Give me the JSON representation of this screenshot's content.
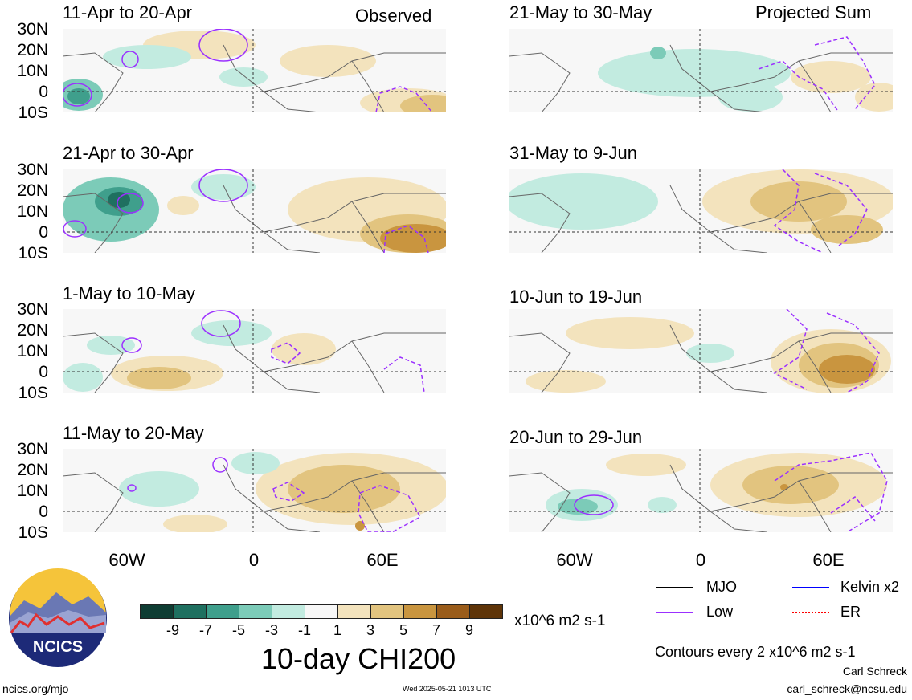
{
  "header": {
    "observed_label": "Observed",
    "projected_label": "Projected Sum"
  },
  "panels": {
    "left": [
      {
        "title": "11-Apr to 20-Apr"
      },
      {
        "title": "21-Apr to 30-Apr"
      },
      {
        "title": "1-May to 10-May"
      },
      {
        "title": "11-May to 20-May"
      }
    ],
    "right": [
      {
        "title": "21-May to 30-May"
      },
      {
        "title": "31-May to 9-Jun"
      },
      {
        "title": "10-Jun to 19-Jun"
      },
      {
        "title": "20-Jun to 29-Jun"
      }
    ]
  },
  "axes": {
    "lat_labels": [
      "30N",
      "20N",
      "10N",
      "0",
      "10S"
    ],
    "lon_labels": [
      "60W",
      "0",
      "60E"
    ]
  },
  "colorbar": {
    "ticks": [
      "-9",
      "-7",
      "-5",
      "-3",
      "-1",
      "1",
      "3",
      "5",
      "7",
      "9"
    ],
    "colors": [
      "#0f3d33",
      "#1f7060",
      "#3f9f8c",
      "#7ccbb8",
      "#c2ebe0",
      "#f7f7f7",
      "#f3e3bd",
      "#e2c47f",
      "#c9953f",
      "#9a5c1a",
      "#5e3408"
    ],
    "units": "x10^6 m2 s-1",
    "title": "10-day CHI200"
  },
  "legend": {
    "items": [
      {
        "label": "MJO",
        "color": "#000000",
        "style": "solid"
      },
      {
        "label": "Kelvin x2",
        "color": "#0000ff",
        "style": "solid"
      },
      {
        "label": "Low",
        "color": "#9b30ff",
        "style": "solid"
      },
      {
        "label": "ER",
        "color": "#ff0000",
        "style": "dotted"
      }
    ],
    "contour_note": "Contours every 2 x10^6 m2 s-1"
  },
  "logo": {
    "text": "NCICS"
  },
  "footer": {
    "url": "ncics.org/mjo",
    "timestamp": "Wed 2025-05-21 1013 UTC",
    "author": "Carl Schreck",
    "email": "carl_schreck@ncsu.edu"
  }
}
